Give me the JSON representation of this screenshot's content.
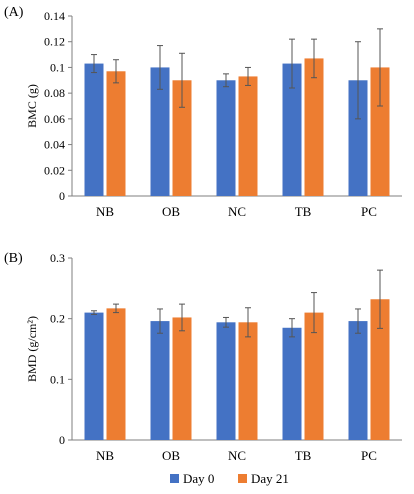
{
  "chart_data": [
    {
      "type": "bar",
      "panel_label": "(A)",
      "categories": [
        "NB",
        "OB",
        "NC",
        "TB",
        "PC"
      ],
      "ylabel": "BMC (g)",
      "ylim": [
        0,
        0.14
      ],
      "yticks": [
        "0",
        "0.02",
        "0.04",
        "0.06",
        "0.08",
        "0.1",
        "0.12",
        "0.14"
      ],
      "ytick_values": [
        0,
        0.02,
        0.04,
        0.06,
        0.08,
        0.1,
        0.12,
        0.14
      ],
      "grid": false,
      "series": [
        {
          "name": "Day 0",
          "color": "#4472C4",
          "values": [
            0.103,
            0.1,
            0.09,
            0.103,
            0.09
          ],
          "errors": [
            0.007,
            0.017,
            0.005,
            0.019,
            0.03
          ]
        },
        {
          "name": "Day 21",
          "color": "#ED7D31",
          "values": [
            0.097,
            0.09,
            0.093,
            0.107,
            0.1
          ],
          "errors": [
            0.009,
            0.021,
            0.007,
            0.015,
            0.03
          ]
        }
      ]
    },
    {
      "type": "bar",
      "panel_label": "(B)",
      "categories": [
        "NB",
        "OB",
        "NC",
        "TB",
        "PC"
      ],
      "ylabel": "BMD (g/cm²)",
      "ylim": [
        0,
        0.3
      ],
      "yticks": [
        "0",
        "0.1",
        "0.2",
        "0.3"
      ],
      "ytick_values": [
        0,
        0.1,
        0.2,
        0.3
      ],
      "grid": false,
      "legend_position": "bottom",
      "series": [
        {
          "name": "Day 0",
          "color": "#4472C4",
          "values": [
            0.21,
            0.196,
            0.194,
            0.185,
            0.196
          ],
          "errors": [
            0.003,
            0.02,
            0.008,
            0.015,
            0.02
          ]
        },
        {
          "name": "Day 21",
          "color": "#ED7D31",
          "values": [
            0.217,
            0.202,
            0.194,
            0.21,
            0.232
          ],
          "errors": [
            0.007,
            0.022,
            0.024,
            0.033,
            0.048
          ]
        }
      ]
    }
  ]
}
